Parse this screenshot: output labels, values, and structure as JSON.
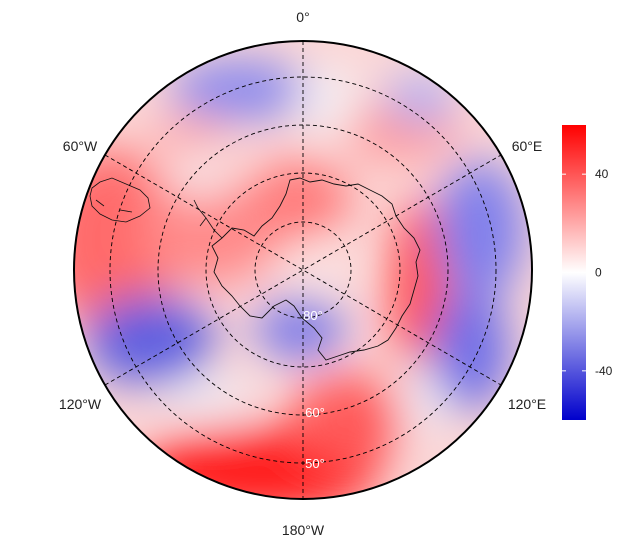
{
  "map": {
    "projection": "south-polar-stereographic",
    "longitude_labels": [
      "0°",
      "60°E",
      "120°E",
      "180°W",
      "120°W",
      "60°W"
    ],
    "latitude_labels": [
      "80°",
      "60°",
      "50°"
    ],
    "graticule_style": "dashed"
  },
  "colorbar": {
    "tick_labels": [
      "40",
      "0",
      "-40"
    ],
    "tick_values": [
      40,
      0,
      -40
    ],
    "range": [
      -60,
      60
    ],
    "low_color": "#0000cc",
    "mid_color": "#ffffff",
    "high_color": "#ff0000"
  }
}
